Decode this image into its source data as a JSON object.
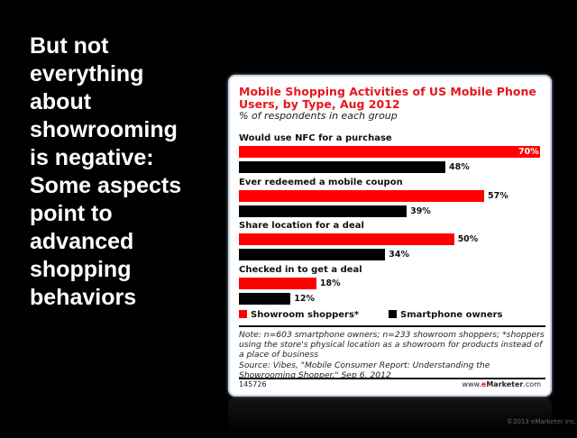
{
  "slide": {
    "headline": "But not\neverything\nabout\nshowrooming\nis negative:\nSome aspects\npoint to\nadvanced\nshopping\nbehaviors",
    "copyright": "©2013 eMarketer Inc."
  },
  "chart_data": {
    "type": "bar",
    "orientation": "horizontal",
    "title": "Mobile Shopping Activities of US Mobile Phone Users, by Type, Aug 2012",
    "subtitle": "% of respondents in each group",
    "categories": [
      "Would use NFC for a purchase",
      "Ever redeemed a mobile coupon",
      "Share location for a deal",
      "Checked in to get a deal"
    ],
    "series": [
      {
        "name": "Showroom shoppers*",
        "color": "#ff0000",
        "values": [
          70,
          57,
          50,
          18
        ],
        "labels": [
          "70%",
          "57%",
          "50%",
          "18%"
        ]
      },
      {
        "name": "Smartphone owners",
        "color": "#000000",
        "values": [
          48,
          39,
          34,
          12
        ],
        "labels": [
          "48%",
          "39%",
          "34%",
          "12%"
        ]
      }
    ],
    "xlim": [
      0,
      70
    ],
    "legend": "bottom",
    "note": "Note: n=603 smartphone owners; n=233 showroom shoppers; *shoppers using the store's physical location as a showroom for products instead of a place of business",
    "source": "Source: Vibes, \"Mobile Consumer Report: Understanding the Showrooming Shopper,\" Sep 6, 2012",
    "chart_id": "145726",
    "site_prefix": "www.",
    "site_brand": "e",
    "site_rest": "Marketer",
    "site_suffix": ".com"
  }
}
